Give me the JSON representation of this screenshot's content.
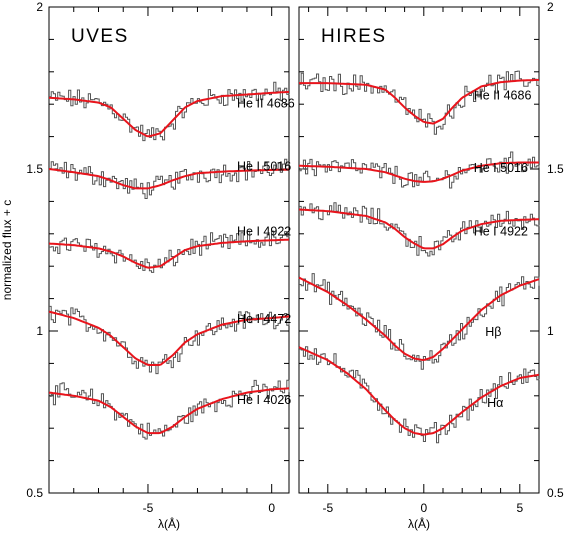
{
  "chart_data": [
    {
      "type": "line",
      "title": "UVES",
      "xlabel": "λ(Å)",
      "ylabel": "normalized flux + c",
      "xlim": [
        -9,
        0.7
      ],
      "ylim": [
        0.5,
        2.0
      ],
      "xticks": [
        -5,
        0
      ],
      "yticks": [
        0.5,
        1,
        1.5,
        2
      ],
      "ytick_labels": [
        "0.5",
        "1",
        "1.5",
        "2"
      ],
      "series": [
        {
          "name": "He II 4686",
          "x": [
            -9,
            -8,
            -7,
            -6.5,
            -6,
            -5.5,
            -5,
            -4.5,
            -4,
            -3.5,
            -3,
            -2,
            -1,
            0,
            0.7
          ],
          "y": [
            1.72,
            1.715,
            1.705,
            1.69,
            1.655,
            1.62,
            1.6,
            1.61,
            1.65,
            1.69,
            1.71,
            1.725,
            1.73,
            1.735,
            1.738
          ]
        },
        {
          "name": "He I 5016",
          "x": [
            -9,
            -8,
            -7,
            -6.5,
            -6,
            -5.5,
            -5,
            -4.5,
            -4,
            -3.5,
            -3,
            -2,
            -1,
            0,
            0.7
          ],
          "y": [
            1.5,
            1.49,
            1.478,
            1.465,
            1.45,
            1.44,
            1.44,
            1.45,
            1.465,
            1.478,
            1.487,
            1.492,
            1.495,
            1.497,
            1.498
          ]
        },
        {
          "name": "He I 4922",
          "x": [
            -9,
            -8,
            -7,
            -6.5,
            -6,
            -5.5,
            -5,
            -4.5,
            -4,
            -3.5,
            -3,
            -2,
            -1,
            0,
            0.7
          ],
          "y": [
            1.27,
            1.265,
            1.255,
            1.245,
            1.23,
            1.21,
            1.195,
            1.2,
            1.225,
            1.25,
            1.262,
            1.272,
            1.277,
            1.28,
            1.282
          ]
        },
        {
          "name": "He I 4472",
          "x": [
            -9,
            -8,
            -7,
            -6.5,
            -6,
            -5.5,
            -5,
            -4.5,
            -4,
            -3.5,
            -3,
            -2,
            -1,
            0,
            0.7
          ],
          "y": [
            1.06,
            1.04,
            1.01,
            0.985,
            0.95,
            0.915,
            0.895,
            0.895,
            0.925,
            0.965,
            0.99,
            1.02,
            1.035,
            1.04,
            1.045
          ]
        },
        {
          "name": "He I 4026",
          "x": [
            -9,
            -8,
            -7,
            -6.5,
            -6,
            -5.5,
            -5,
            -4.5,
            -4,
            -3.5,
            -3,
            -2,
            -1,
            0,
            0.7
          ],
          "y": [
            0.81,
            0.8,
            0.785,
            0.765,
            0.735,
            0.705,
            0.685,
            0.685,
            0.705,
            0.735,
            0.76,
            0.79,
            0.81,
            0.82,
            0.823
          ]
        }
      ]
    },
    {
      "type": "line",
      "title": "HIRES",
      "xlabel": "λ(Å)",
      "ylabel": "",
      "xlim": [
        -6.5,
        6.0
      ],
      "ylim": [
        0.5,
        2.0
      ],
      "xticks": [
        -5,
        0,
        5
      ],
      "yticks": [
        0.5,
        1,
        1.5,
        2
      ],
      "ytick_labels": [
        "0.5",
        "1",
        "1.5",
        "2"
      ],
      "series": [
        {
          "name": "He II 4686",
          "x": [
            -6.5,
            -5,
            -3,
            -2,
            -1.5,
            -1,
            -0.5,
            0,
            0.5,
            1,
            1.5,
            2,
            3,
            4,
            5,
            6
          ],
          "y": [
            1.765,
            1.765,
            1.76,
            1.745,
            1.72,
            1.69,
            1.665,
            1.645,
            1.64,
            1.655,
            1.69,
            1.72,
            1.755,
            1.768,
            1.773,
            1.775
          ]
        },
        {
          "name": "He I 5016",
          "x": [
            -6.5,
            -5,
            -3,
            -2,
            -1.5,
            -1,
            -0.5,
            0,
            0.5,
            1,
            1.5,
            2,
            3,
            4,
            5,
            6
          ],
          "y": [
            1.51,
            1.507,
            1.5,
            1.49,
            1.48,
            1.47,
            1.463,
            1.46,
            1.462,
            1.47,
            1.482,
            1.495,
            1.51,
            1.518,
            1.52,
            1.52
          ]
        },
        {
          "name": "He I 4922",
          "x": [
            -6.5,
            -5,
            -3,
            -2,
            -1.5,
            -1,
            -0.5,
            0,
            0.5,
            1,
            1.5,
            2,
            3,
            4,
            5,
            6
          ],
          "y": [
            1.375,
            1.37,
            1.355,
            1.335,
            1.315,
            1.29,
            1.27,
            1.255,
            1.255,
            1.268,
            1.29,
            1.31,
            1.33,
            1.34,
            1.343,
            1.345
          ]
        },
        {
          "name": "Hβ",
          "x": [
            -6.5,
            -5,
            -4,
            -3,
            -2,
            -1.5,
            -1,
            -0.5,
            0,
            0.5,
            1,
            1.5,
            2,
            3,
            4,
            5,
            6
          ],
          "y": [
            1.165,
            1.12,
            1.08,
            1.035,
            0.985,
            0.955,
            0.93,
            0.915,
            0.91,
            0.92,
            0.945,
            0.975,
            1.005,
            1.065,
            1.11,
            1.14,
            1.16
          ]
        },
        {
          "name": "Hα",
          "x": [
            -6.5,
            -5,
            -4,
            -3,
            -2,
            -1.5,
            -1,
            -0.5,
            0,
            0.5,
            1,
            1.5,
            2,
            3,
            4,
            5,
            6
          ],
          "y": [
            0.95,
            0.91,
            0.87,
            0.82,
            0.755,
            0.725,
            0.7,
            0.685,
            0.68,
            0.685,
            0.7,
            0.725,
            0.75,
            0.795,
            0.83,
            0.855,
            0.865
          ]
        }
      ]
    }
  ],
  "colors": {
    "fit": "#e8141c",
    "spectrum": "#555555",
    "axes": "#000000"
  }
}
